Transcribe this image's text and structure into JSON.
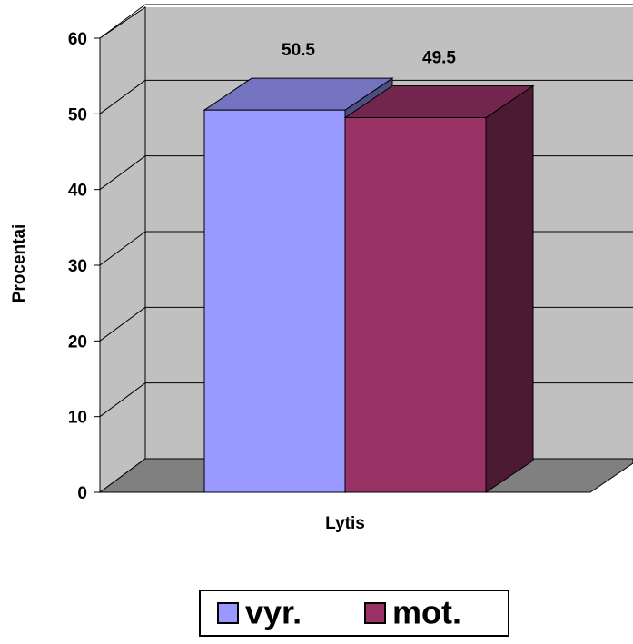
{
  "chart_data": {
    "type": "bar3d",
    "y_label": "Procentai",
    "x_label": "Lytis",
    "categories": [
      "Lytis"
    ],
    "series": [
      {
        "name": "vyr.",
        "color": "#9999ff",
        "values": [
          50.5
        ]
      },
      {
        "name": "mot.",
        "color": "#993366",
        "values": [
          49.5
        ]
      }
    ],
    "ylim": [
      0,
      60
    ],
    "yticks": [
      0,
      10,
      20,
      30,
      40,
      50,
      60
    ],
    "grid": true,
    "legend": "bottom"
  }
}
